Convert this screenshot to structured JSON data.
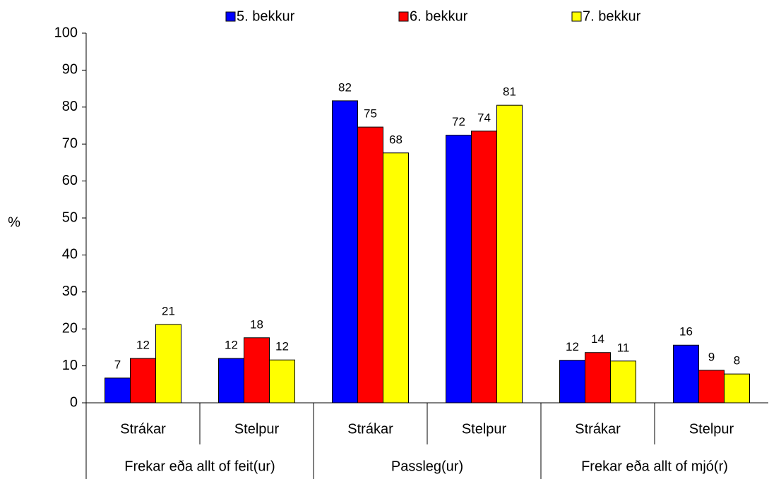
{
  "chart_data": {
    "type": "bar",
    "ylabel": "%",
    "categories": [
      "Strákar",
      "Stelpur",
      "Strákar",
      "Stelpur",
      "Strákar",
      "Stelpur"
    ],
    "groups": [
      "Frekar eða allt of feit(ur)",
      "Passleg(ur)",
      "Frekar eða allt of mjó(r)"
    ],
    "series": [
      {
        "name": "5. bekkur",
        "color": "#0000ff",
        "values": [
          6.7,
          12.0,
          81.7,
          72.4,
          11.5,
          15.6
        ],
        "value_labels": [
          "7",
          "12",
          "82",
          "72",
          "12",
          "16"
        ]
      },
      {
        "name": "6. bekkur",
        "color": "#ff0000",
        "values": [
          12.0,
          17.6,
          74.6,
          73.5,
          13.6,
          8.8
        ],
        "value_labels": [
          "12",
          "18",
          "75",
          "74",
          "14",
          "9"
        ]
      },
      {
        "name": "7. bekkur",
        "color": "#ffff00",
        "values": [
          21.2,
          11.6,
          67.6,
          80.5,
          11.3,
          7.8
        ],
        "value_labels": [
          "21",
          "12",
          "68",
          "81",
          "11",
          "8"
        ]
      }
    ],
    "ylim": [
      0,
      100
    ],
    "yticks": [
      0,
      10,
      20,
      30,
      40,
      50,
      60,
      70,
      80,
      90,
      100
    ],
    "legend": "top"
  }
}
